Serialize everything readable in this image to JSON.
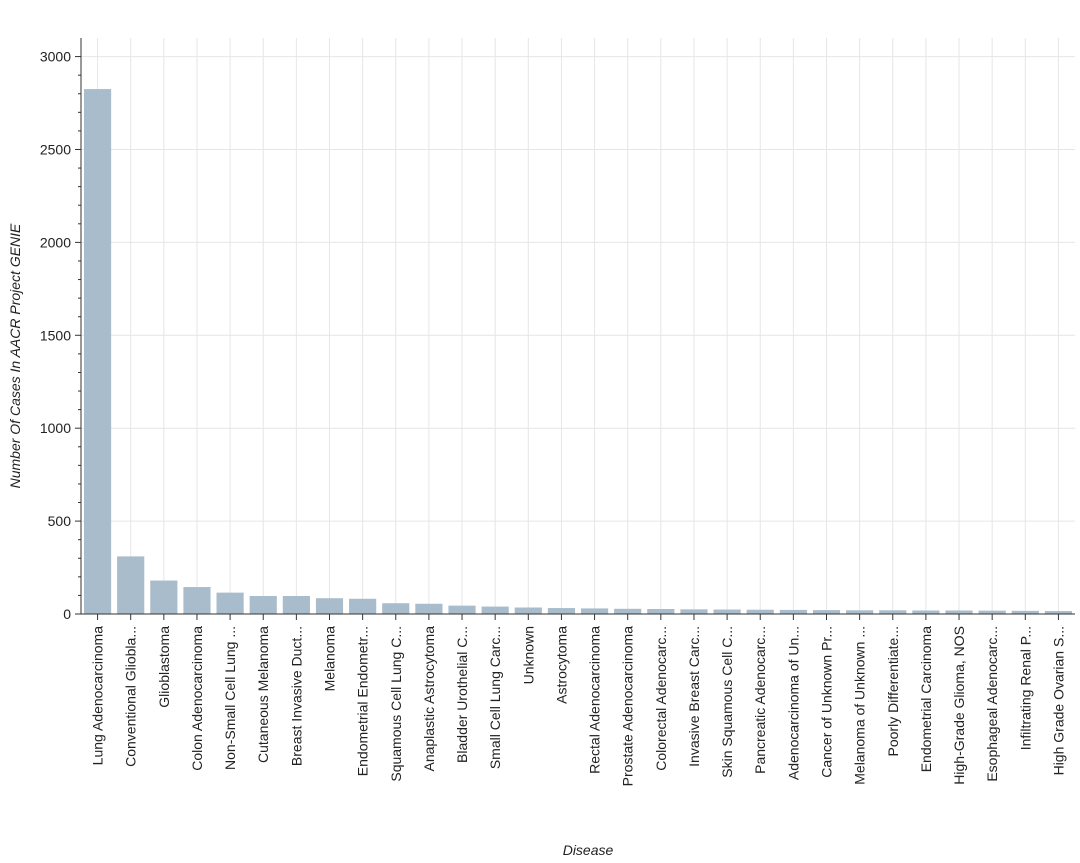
{
  "chart_data": {
    "type": "bar",
    "title": "",
    "xlabel": "Disease",
    "ylabel": "Number Of Cases In AACR Project GENIE",
    "ylim": [
      0,
      3100
    ],
    "yticks": [
      0,
      500,
      1000,
      1500,
      2000,
      2500,
      3000
    ],
    "grid": true,
    "bar_color": "#a8bccc",
    "categories": [
      "Lung Adenocarcinoma",
      "Conventional Gliobla...",
      "Glioblastoma",
      "Colon Adenocarcinoma",
      "Non-Small Cell Lung ...",
      "Cutaneous Melanoma",
      "Breast Invasive Duct...",
      "Melanoma",
      "Endometrial Endometr...",
      "Squamous Cell Lung C...",
      "Anaplastic Astrocytoma",
      "Bladder Urothelial C...",
      "Small Cell Lung Carc...",
      "Unknown",
      "Astrocytoma",
      "Rectal Adenocarcinoma",
      "Prostate Adenocarcinoma",
      "Colorectal Adenocarc...",
      "Invasive Breast Carc...",
      "Skin Squamous Cell C...",
      "Pancreatic Adenocarc...",
      "Adenocarcinoma of Un...",
      "Cancer of Unknown Pr...",
      "Melanoma of Unknown ...",
      "Poorly Differentiate...",
      "Endometrial Carcinoma",
      "High-Grade Glioma, NOS",
      "Esophageal Adenocarc...",
      "Infiltrating Renal P...",
      "High Grade Ovarian S..."
    ],
    "values": [
      2825,
      310,
      180,
      145,
      115,
      97,
      97,
      85,
      82,
      58,
      55,
      45,
      40,
      35,
      32,
      30,
      28,
      27,
      25,
      24,
      23,
      22,
      21,
      20,
      20,
      19,
      19,
      18,
      17,
      16
    ]
  }
}
